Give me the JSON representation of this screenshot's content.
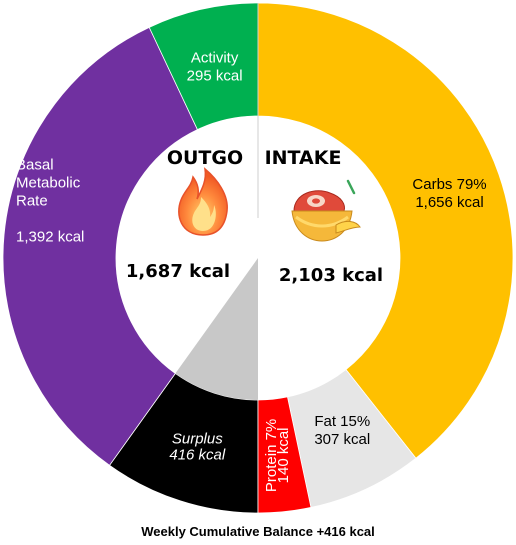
{
  "chart_data": {
    "type": "pie",
    "subtype": "split-donut",
    "title": "",
    "footer": "Weekly Cumulative Balance +416 kcal",
    "outgo": {
      "heading": "OUTGO",
      "total": "1,687 kcal",
      "icon": "fire-icon",
      "segments": [
        {
          "key": "surplus",
          "label_lines": [
            "Surplus",
            "416 kcal"
          ],
          "value": 416,
          "color": "#000000",
          "text_color": "#ffffff",
          "italic": true
        },
        {
          "key": "bmr",
          "label_lines": [
            "Basal",
            "Metabolic",
            "Rate",
            "",
            "1,392 kcal"
          ],
          "value": 1392,
          "color": "#7030a0",
          "text_color": "#ffffff",
          "italic": false
        },
        {
          "key": "activity",
          "label_lines": [
            "Activity",
            "295 kcal"
          ],
          "value": 295,
          "color": "#00b050",
          "text_color": "#ffffff",
          "italic": false
        }
      ]
    },
    "intake": {
      "heading": "INTAKE",
      "total": "2,103 kcal",
      "icon": "food-bowl-icon",
      "segments": [
        {
          "key": "carbs",
          "label_lines": [
            "Carbs 79%",
            "1,656 kcal"
          ],
          "value": 1656,
          "color": "#ffc000",
          "text_color": "#000000",
          "italic": false
        },
        {
          "key": "fat",
          "label_lines": [
            "Fat 15%",
            "307 kcal"
          ],
          "value": 307,
          "color": "#e6e6e6",
          "text_color": "#000000",
          "italic": false
        },
        {
          "key": "protein",
          "label_lines": [
            "Protein 7%",
            "140 kcal"
          ],
          "value": 140,
          "color": "#ff0000",
          "text_color": "#ffffff",
          "italic": false
        }
      ]
    },
    "surplus_wedge_color": "#c8c8c8"
  }
}
